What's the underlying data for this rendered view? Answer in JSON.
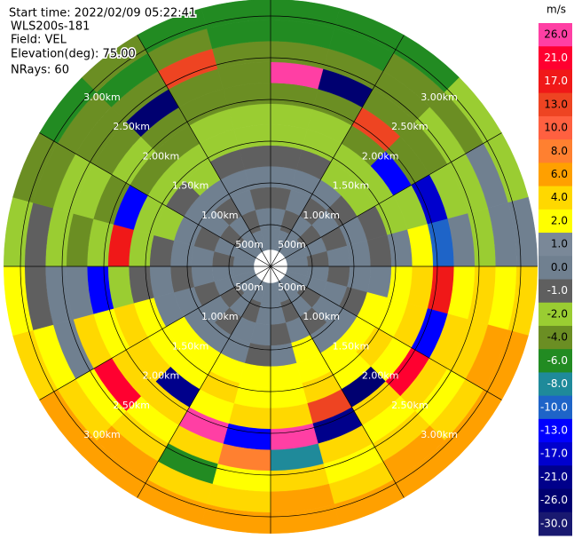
{
  "header": {
    "start_time": "Start time: 2022/02/09 05:22:41",
    "instrument": "WLS200s-181",
    "field": "Field: VEL",
    "elevation": "Elevation(deg): 75.00",
    "nrays": "NRays: 60"
  },
  "chart_data": {
    "type": "ppi",
    "range_rings": [
      {
        "value": 0.5,
        "label": "500m"
      },
      {
        "value": 1.0,
        "label": "1.00km"
      },
      {
        "value": 1.5,
        "label": "1.50km"
      },
      {
        "value": 2.0,
        "label": "2.00km"
      },
      {
        "value": 2.5,
        "label": "2.50km"
      },
      {
        "value": 3.0,
        "label": "3.00km"
      }
    ],
    "colorbar": {
      "title": "m/s",
      "ticks": [
        {
          "value": 26,
          "label": "26.0"
        },
        {
          "value": 21,
          "label": "21.0"
        },
        {
          "value": 17,
          "label": "17.0"
        },
        {
          "value": 13,
          "label": "13.0"
        },
        {
          "value": 10,
          "label": "10.0"
        },
        {
          "value": 8,
          "label": "8.0"
        },
        {
          "value": 6,
          "label": "6.0"
        },
        {
          "value": 4,
          "label": "4.0"
        },
        {
          "value": 2,
          "label": "2.0"
        },
        {
          "value": 1,
          "label": "1.0"
        },
        {
          "value": 0,
          "label": "0.0"
        },
        {
          "value": -1,
          "label": "-1.0"
        },
        {
          "value": -2,
          "label": "-2.0"
        },
        {
          "value": -4,
          "label": "-4.0"
        },
        {
          "value": -6,
          "label": "-6.0"
        },
        {
          "value": -8,
          "label": "-8.0"
        },
        {
          "value": -10,
          "label": "-10.0"
        },
        {
          "value": -13,
          "label": "-13.0"
        },
        {
          "value": -17,
          "label": "-17.0"
        },
        {
          "value": -21,
          "label": "-21.0"
        },
        {
          "value": -26,
          "label": "-26.0"
        },
        {
          "value": -30,
          "label": "-30.0"
        }
      ],
      "colors": [
        "#ff3fa4",
        "#ff0030",
        "#f01818",
        "#ee4422",
        "#ff6040",
        "#ff8030",
        "#ffa000",
        "#ffd800",
        "#ffff00",
        "#7a8898",
        "#708090",
        "#5f5f5f",
        "#9acd32",
        "#6b8e23",
        "#228b22",
        "#1f8a9a",
        "#1e64c8",
        "#0000ff",
        "#0000cd",
        "#00008b",
        "#000070",
        "#191970"
      ]
    },
    "values": [
      [
        0,
        0,
        -1,
        0,
        -1,
        -2,
        -2,
        -4,
        26,
        -4,
        -6,
        -6
      ],
      [
        0,
        -1,
        0,
        0,
        -1,
        -2,
        -2,
        -4,
        -26,
        -4,
        -6,
        -6
      ],
      [
        0,
        0,
        -1,
        0,
        -2,
        -2,
        -4,
        13,
        -4,
        -4,
        -4,
        -6
      ],
      [
        0,
        -1,
        0,
        -1,
        -2,
        -2,
        -13,
        -4,
        -4,
        -2,
        -4,
        -2
      ],
      [
        0,
        0,
        -1,
        0,
        -1,
        -2,
        -2,
        -17,
        -2,
        -2,
        0,
        -2
      ],
      [
        0,
        -1,
        0,
        0,
        -1,
        0,
        2,
        -10,
        0,
        -2,
        0,
        0
      ],
      [
        0,
        0,
        -1,
        0,
        0,
        2,
        4,
        17,
        2,
        4,
        2,
        4
      ],
      [
        0,
        0,
        0,
        -1,
        2,
        2,
        4,
        -13,
        4,
        4,
        6,
        6
      ],
      [
        0,
        -1,
        0,
        0,
        2,
        4,
        2,
        21,
        4,
        2,
        4,
        6
      ],
      [
        0,
        0,
        -1,
        0,
        2,
        2,
        -26,
        4,
        2,
        4,
        6,
        6
      ],
      [
        0,
        -1,
        0,
        2,
        2,
        4,
        13,
        -21,
        4,
        2,
        4,
        6
      ],
      [
        0,
        0,
        -1,
        0,
        2,
        2,
        4,
        26,
        -8,
        4,
        6,
        6
      ],
      [
        0,
        0,
        0,
        -1,
        2,
        2,
        4,
        -13,
        8,
        2,
        4,
        6
      ],
      [
        0,
        -1,
        0,
        0,
        2,
        4,
        2,
        26,
        4,
        -6,
        4,
        6
      ],
      [
        0,
        0,
        -1,
        0,
        2,
        2,
        -21,
        4,
        2,
        4,
        6,
        6
      ],
      [
        0,
        -1,
        0,
        0,
        2,
        2,
        4,
        4,
        21,
        2,
        4,
        6
      ],
      [
        0,
        0,
        -1,
        0,
        0,
        2,
        4,
        2,
        4,
        0,
        2,
        4
      ],
      [
        0,
        0,
        0,
        -1,
        0,
        -1,
        -2,
        -13,
        0,
        0,
        -1,
        2
      ],
      [
        0,
        -1,
        0,
        0,
        -1,
        -2,
        17,
        -2,
        -4,
        -2,
        -1,
        -2
      ],
      [
        0,
        0,
        -1,
        0,
        -2,
        -2,
        -13,
        -4,
        -2,
        -2,
        -4,
        -4
      ],
      [
        0,
        -1,
        0,
        0,
        -1,
        -2,
        -4,
        -2,
        -4,
        -4,
        -4,
        -6
      ],
      [
        0,
        0,
        -1,
        0,
        -2,
        -2,
        -4,
        -4,
        -26,
        -4,
        -6,
        -4
      ],
      [
        0,
        -1,
        0,
        0,
        -1,
        -2,
        -2,
        -4,
        -4,
        13,
        -4,
        -6
      ],
      [
        0,
        0,
        -1,
        0,
        -1,
        -2,
        -2,
        -4,
        -4,
        -4,
        -6,
        -6
      ]
    ]
  }
}
